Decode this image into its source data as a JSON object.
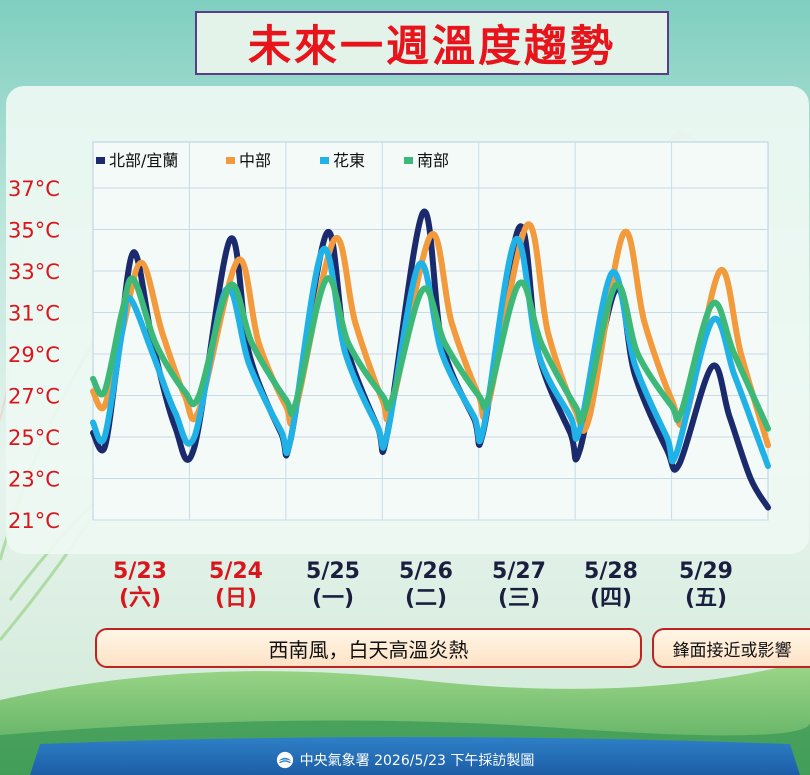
{
  "title": "未來一週溫度趨勢",
  "chart_data": {
    "type": "line",
    "ylim": [
      21,
      37
    ],
    "yticks": [
      21,
      23,
      25,
      27,
      29,
      31,
      33,
      35,
      37
    ],
    "ytick_labels": [
      "21°C",
      "23°C",
      "25°C",
      "27°C",
      "29°C",
      "31°C",
      "33°C",
      "35°C",
      "37°C"
    ],
    "x_range": [
      0,
      7
    ],
    "legend_position": "top-left",
    "grid": true,
    "series": [
      {
        "name": "北部/宜蘭",
        "color": "#1a2a6c",
        "points": [
          [
            0,
            25.2
          ],
          [
            0.12,
            24.5
          ],
          [
            0.25,
            28.5
          ],
          [
            0.42,
            33.9
          ],
          [
            0.62,
            29.5
          ],
          [
            0.85,
            25.5
          ],
          [
            1.05,
            24.5
          ],
          [
            1.42,
            34.5
          ],
          [
            1.62,
            29.0
          ],
          [
            1.95,
            25.2
          ],
          [
            2.05,
            24.9
          ],
          [
            2.42,
            34.8
          ],
          [
            2.62,
            29.5
          ],
          [
            2.95,
            25.5
          ],
          [
            3.05,
            25.1
          ],
          [
            3.42,
            35.8
          ],
          [
            3.62,
            29.5
          ],
          [
            3.95,
            25.9
          ],
          [
            4.05,
            25.3
          ],
          [
            4.42,
            35.1
          ],
          [
            4.62,
            29.0
          ],
          [
            4.95,
            25.2
          ],
          [
            5.05,
            24.4
          ],
          [
            5.42,
            32.1
          ],
          [
            5.62,
            28.0
          ],
          [
            5.95,
            24.4
          ],
          [
            6.08,
            23.7
          ],
          [
            6.42,
            28.4
          ],
          [
            6.6,
            26.0
          ],
          [
            6.82,
            23.0
          ],
          [
            7.0,
            21.6
          ]
        ]
      },
      {
        "name": "中部",
        "color": "#f29a3c",
        "points": [
          [
            0,
            27.2
          ],
          [
            0.12,
            26.5
          ],
          [
            0.3,
            30.0
          ],
          [
            0.5,
            33.4
          ],
          [
            0.72,
            30.0
          ],
          [
            0.95,
            27.0
          ],
          [
            1.1,
            26.3
          ],
          [
            1.5,
            33.5
          ],
          [
            1.72,
            29.5
          ],
          [
            2.0,
            26.5
          ],
          [
            2.1,
            26.3
          ],
          [
            2.5,
            34.5
          ],
          [
            2.72,
            30.5
          ],
          [
            3.0,
            26.8
          ],
          [
            3.1,
            26.5
          ],
          [
            3.5,
            34.7
          ],
          [
            3.72,
            30.5
          ],
          [
            4.0,
            27.0
          ],
          [
            4.1,
            26.6
          ],
          [
            4.5,
            35.2
          ],
          [
            4.72,
            30.0
          ],
          [
            5.0,
            26.3
          ],
          [
            5.15,
            26.0
          ],
          [
            5.5,
            34.8
          ],
          [
            5.72,
            30.5
          ],
          [
            6.0,
            26.8
          ],
          [
            6.15,
            26.0
          ],
          [
            6.5,
            33.0
          ],
          [
            6.72,
            29.0
          ],
          [
            7.0,
            24.6
          ]
        ]
      },
      {
        "name": "花東",
        "color": "#20b2e6",
        "points": [
          [
            0,
            25.7
          ],
          [
            0.12,
            25.0
          ],
          [
            0.3,
            30.0
          ],
          [
            0.38,
            31.7
          ],
          [
            0.62,
            29.0
          ],
          [
            0.85,
            26.2
          ],
          [
            1.05,
            25.0
          ],
          [
            1.38,
            32.1
          ],
          [
            1.62,
            28.5
          ],
          [
            1.95,
            25.3
          ],
          [
            2.05,
            24.9
          ],
          [
            2.38,
            34.0
          ],
          [
            2.62,
            29.0
          ],
          [
            2.95,
            25.5
          ],
          [
            3.05,
            25.1
          ],
          [
            3.38,
            33.3
          ],
          [
            3.62,
            29.0
          ],
          [
            3.95,
            26.0
          ],
          [
            4.05,
            25.4
          ],
          [
            4.38,
            34.5
          ],
          [
            4.62,
            29.0
          ],
          [
            4.95,
            26.0
          ],
          [
            5.05,
            25.4
          ],
          [
            5.38,
            32.9
          ],
          [
            5.62,
            28.5
          ],
          [
            5.95,
            25.0
          ],
          [
            6.05,
            24.2
          ],
          [
            6.42,
            30.6
          ],
          [
            6.65,
            28.0
          ],
          [
            6.85,
            25.5
          ],
          [
            7.0,
            23.6
          ]
        ]
      },
      {
        "name": "南部",
        "color": "#3cb878",
        "points": [
          [
            0,
            27.8
          ],
          [
            0.12,
            27.2
          ],
          [
            0.3,
            31.0
          ],
          [
            0.42,
            32.6
          ],
          [
            0.65,
            29.5
          ],
          [
            0.95,
            27.2
          ],
          [
            1.1,
            27.0
          ],
          [
            1.42,
            32.3
          ],
          [
            1.65,
            29.5
          ],
          [
            2.0,
            26.8
          ],
          [
            2.1,
            26.6
          ],
          [
            2.42,
            32.6
          ],
          [
            2.65,
            29.5
          ],
          [
            3.0,
            27.0
          ],
          [
            3.1,
            26.8
          ],
          [
            3.42,
            32.1
          ],
          [
            3.65,
            29.5
          ],
          [
            4.0,
            27.0
          ],
          [
            4.1,
            26.9
          ],
          [
            4.42,
            32.4
          ],
          [
            4.65,
            29.5
          ],
          [
            5.0,
            26.5
          ],
          [
            5.1,
            26.2
          ],
          [
            5.42,
            32.3
          ],
          [
            5.65,
            29.0
          ],
          [
            6.0,
            26.5
          ],
          [
            6.1,
            26.2
          ],
          [
            6.42,
            31.4
          ],
          [
            6.65,
            29.0
          ],
          [
            7.0,
            25.4
          ]
        ]
      }
    ]
  },
  "dates": [
    {
      "date": "5/23",
      "day": "(六)",
      "color": "#d9161c"
    },
    {
      "date": "5/24",
      "day": "(日)",
      "color": "#d9161c"
    },
    {
      "date": "5/25",
      "day": "(一)",
      "color": "#1a1f3f"
    },
    {
      "date": "5/26",
      "day": "(二)",
      "color": "#1a1f3f"
    },
    {
      "date": "5/27",
      "day": "(三)",
      "color": "#1a1f3f"
    },
    {
      "date": "5/28",
      "day": "(四)",
      "color": "#1a1f3f"
    },
    {
      "date": "5/29",
      "day": "(五)",
      "color": "#1a1f3f"
    }
  ],
  "banners": {
    "main": "西南風，白天高溫炎熱",
    "side": "鋒面接近或影響"
  },
  "footer": "中央氣象署 2026/5/23 下午採訪製圖"
}
